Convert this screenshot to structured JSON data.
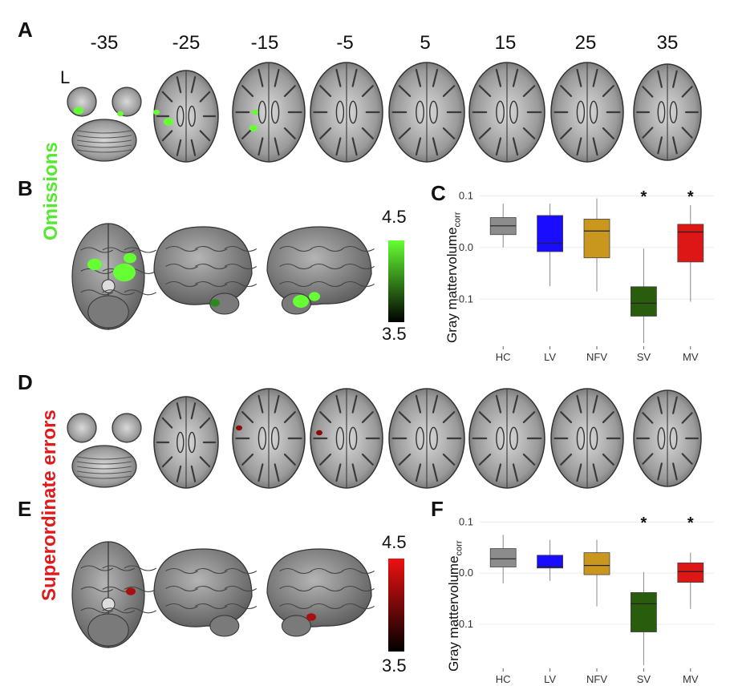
{
  "panels": {
    "A": "A",
    "B": "B",
    "C": "C",
    "D": "D",
    "E": "E",
    "F": "F"
  },
  "slice_coords": [
    "-35",
    "-25",
    "-15",
    "-5",
    "5",
    "15",
    "25",
    "35"
  ],
  "hemisphere_label": "L",
  "section_labels": {
    "omissions": "Omissions",
    "superordinate_word": "Superordinate",
    "errors_word": "errors"
  },
  "colorbars": {
    "green": {
      "max": "4.5",
      "min": "3.5",
      "top_color": "#66ff33",
      "bottom_color": "#000000"
    },
    "red": {
      "max": "4.5",
      "min": "3.5",
      "top_color": "#ee1111",
      "bottom_color": "#000000"
    }
  },
  "chart_data": [
    {
      "type": "box",
      "panel": "C",
      "ylabel_main": "Gray mattervolume",
      "ylabel_sub": "corr",
      "categories": [
        "HC",
        "LV",
        "NFV",
        "SV",
        "MV"
      ],
      "y_ticks": [
        "0.1",
        "0.0",
        "-0.1"
      ],
      "y_tick_values": [
        0.1,
        0.0,
        -0.1
      ],
      "ylim": [
        -0.185,
        0.11
      ],
      "colors": [
        "#8c8c8c",
        "#1a0dff",
        "#c9971e",
        "#2a5c0d",
        "#dd1616"
      ],
      "boxes": [
        {
          "min": 0.0,
          "q1": 0.025,
          "median": 0.042,
          "q3": 0.058,
          "max": 0.085
        },
        {
          "min": -0.075,
          "q1": -0.008,
          "median": 0.008,
          "q3": 0.062,
          "max": 0.085
        },
        {
          "min": -0.085,
          "q1": -0.02,
          "median": 0.032,
          "q3": 0.055,
          "max": 0.095
        },
        {
          "min": -0.185,
          "q1": -0.133,
          "median": -0.108,
          "q3": -0.076,
          "max": -0.002
        },
        {
          "min": -0.105,
          "q1": -0.028,
          "median": 0.03,
          "q3": 0.045,
          "max": 0.082
        }
      ],
      "significance": [
        "",
        "",
        "",
        "*",
        "*"
      ]
    },
    {
      "type": "box",
      "panel": "F",
      "ylabel_main": "Gray mattervolume",
      "ylabel_sub": "corr",
      "categories": [
        "HC",
        "LV",
        "NFV",
        "SV",
        "MV"
      ],
      "y_ticks": [
        "0.1",
        "0.0",
        "-0.1"
      ],
      "y_tick_values": [
        0.1,
        0.0,
        -0.1
      ],
      "ylim": [
        -0.18,
        0.11
      ],
      "colors": [
        "#8c8c8c",
        "#1a0dff",
        "#c9971e",
        "#2a5c0d",
        "#dd1616"
      ],
      "boxes": [
        {
          "min": -0.02,
          "q1": 0.012,
          "median": 0.028,
          "q3": 0.048,
          "max": 0.075
        },
        {
          "min": -0.015,
          "q1": 0.01,
          "median": 0.012,
          "q3": 0.035,
          "max": 0.065
        },
        {
          "min": -0.065,
          "q1": -0.003,
          "median": 0.015,
          "q3": 0.04,
          "max": 0.065
        },
        {
          "min": -0.18,
          "q1": -0.115,
          "median": -0.06,
          "q3": -0.038,
          "max": 0.002
        },
        {
          "min": -0.07,
          "q1": -0.018,
          "median": 0.003,
          "q3": 0.02,
          "max": 0.04
        }
      ],
      "significance": [
        "",
        "",
        "",
        "*",
        "*"
      ]
    }
  ]
}
